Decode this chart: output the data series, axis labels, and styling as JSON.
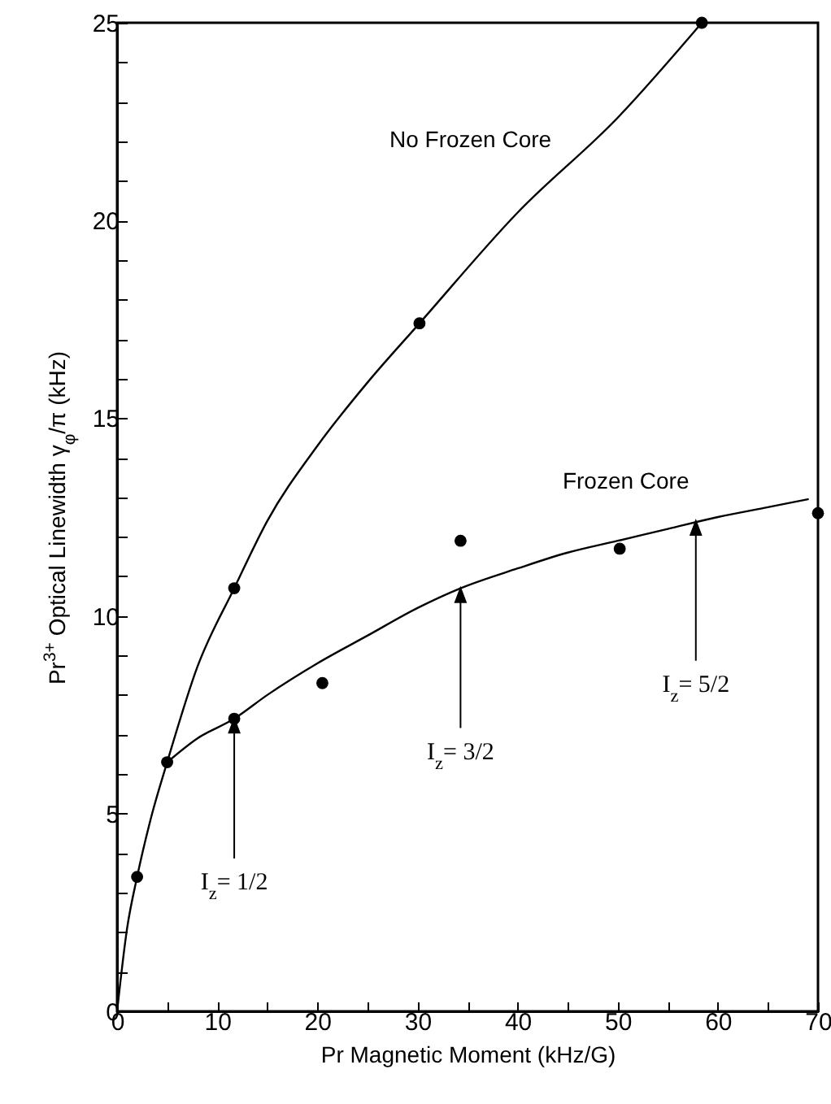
{
  "chart_data": {
    "type": "line",
    "xlabel": "Pr Magnetic Moment  (kHz/G)",
    "ylabel": "Pr$^{3+}$ Optical Linewidth γ$_{φ}$/π (kHz)",
    "xlim": [
      0,
      70
    ],
    "ylim": [
      0,
      25
    ],
    "xticks": [
      0,
      {
        "value": 5,
        "label": null
      },
      10,
      {
        "value": 15,
        "label": null
      },
      20,
      {
        "value": 25,
        "label": null
      },
      30,
      {
        "value": 35,
        "label": null
      },
      40,
      {
        "value": 45,
        "label": null
      },
      50,
      {
        "value": 55,
        "label": null
      },
      60,
      {
        "value": 65,
        "label": null
      },
      70
    ],
    "yticks": [
      0,
      {
        "value": 1,
        "label": null
      },
      {
        "value": 2,
        "label": null
      },
      {
        "value": 3,
        "label": null
      },
      {
        "value": 4,
        "label": null
      },
      5,
      {
        "value": 6,
        "label": null
      },
      {
        "value": 7,
        "label": null
      },
      {
        "value": 8,
        "label": null
      },
      {
        "value": 9,
        "label": null
      },
      10,
      {
        "value": 11,
        "label": null
      },
      {
        "value": 12,
        "label": null
      },
      {
        "value": 13,
        "label": null
      },
      {
        "value": 14,
        "label": null
      },
      15,
      {
        "value": 16,
        "label": null
      },
      {
        "value": 17,
        "label": null
      },
      {
        "value": 18,
        "label": null
      },
      {
        "value": 19,
        "label": null
      },
      20,
      {
        "value": 21,
        "label": null
      },
      {
        "value": 22,
        "label": null
      },
      {
        "value": 23,
        "label": null
      },
      {
        "value": 24,
        "label": null
      },
      25
    ],
    "line_style": "solid",
    "series": [
      {
        "name": "No Frozen Core",
        "type": "line",
        "color": "#000000",
        "marker": "none",
        "x": [
          0,
          1,
          2,
          3.5,
          5,
          8,
          11.7,
          15,
          20,
          25,
          30.2,
          40,
          50,
          58.4
        ],
        "values": [
          0,
          2.1,
          3.4,
          5,
          6.3,
          8.7,
          10.7,
          12.4,
          14.3,
          15.9,
          17.4,
          20.2,
          22.6,
          25
        ]
      },
      {
        "name": "Frozen Core",
        "type": "line",
        "color": "#000000",
        "marker": "none",
        "x": [
          5,
          8,
          11.7,
          15,
          20,
          25,
          30,
          34.3,
          40,
          45,
          50,
          55,
          60,
          65,
          69
        ],
        "values": [
          6.3,
          6.9,
          7.4,
          8.0,
          8.8,
          9.5,
          10.2,
          10.7,
          11.2,
          11.6,
          11.9,
          12.2,
          12.5,
          12.75,
          12.95
        ]
      },
      {
        "type": "scatter",
        "color": "#000000",
        "marker": "circle",
        "x": [
          2,
          5,
          11.7,
          11.7,
          20.5,
          30.2,
          34.3,
          50.2,
          58.4,
          70
        ],
        "values": [
          3.4,
          6.3,
          10.7,
          7.4,
          8.3,
          17.4,
          11.9,
          11.7,
          25,
          12.6
        ]
      }
    ],
    "annotations": [
      {
        "text": "I$_{z}$= 1/2",
        "x": 11.7,
        "y": 7.4
      },
      {
        "text": "I$_{z}$= 3/2",
        "x": 34.3,
        "y": 10.7
      },
      {
        "text": "I$_{z}$= 5/2",
        "x": 57.8,
        "y": 12.4
      }
    ]
  }
}
